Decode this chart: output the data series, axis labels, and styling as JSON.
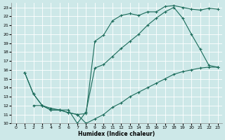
{
  "bg_color": "#cde8e8",
  "grid_color": "#b8d8d8",
  "line_color": "#1a6b5a",
  "xlabel": "Humidex (Indice chaleur)",
  "xlim": [
    -0.5,
    23.5
  ],
  "ylim": [
    10,
    23.5
  ],
  "xticks": [
    0,
    1,
    2,
    3,
    4,
    5,
    6,
    7,
    8,
    9,
    10,
    11,
    12,
    13,
    14,
    15,
    16,
    17,
    18,
    19,
    20,
    21,
    22,
    23
  ],
  "yticks": [
    10,
    11,
    12,
    13,
    14,
    15,
    16,
    17,
    18,
    19,
    20,
    21,
    22,
    23
  ],
  "line_A_x": [
    1,
    2,
    3,
    4,
    5,
    6,
    7,
    8,
    9,
    10,
    11,
    12,
    13,
    14,
    15,
    16,
    17,
    18,
    19,
    20,
    21,
    22,
    23
  ],
  "line_A_y": [
    15.7,
    13.3,
    12.0,
    11.5,
    11.5,
    11.2,
    11.0,
    10.0,
    10.5,
    11.0,
    11.8,
    12.3,
    13.0,
    13.5,
    14.0,
    14.5,
    15.0,
    15.5,
    15.8,
    16.0,
    16.2,
    16.3,
    16.3
  ],
  "line_B_x": [
    1,
    2,
    3,
    4,
    5,
    6,
    7,
    8,
    9,
    10,
    11,
    12,
    13,
    14,
    15,
    16,
    17,
    18,
    19,
    20,
    21,
    22,
    23
  ],
  "line_B_y": [
    15.7,
    13.3,
    12.0,
    11.5,
    11.5,
    11.2,
    11.0,
    11.1,
    19.2,
    19.9,
    21.5,
    22.1,
    22.3,
    22.1,
    22.5,
    22.5,
    23.1,
    23.2,
    23.0,
    22.8,
    22.7,
    22.9,
    22.8
  ],
  "line_C_x": [
    2,
    3,
    4,
    5,
    6,
    7,
    8,
    9,
    10,
    11,
    12,
    13,
    14,
    15,
    16,
    17,
    18,
    19,
    20,
    21,
    22,
    23
  ],
  "line_C_y": [
    12.0,
    12.0,
    11.7,
    11.5,
    11.5,
    10.0,
    11.3,
    16.2,
    16.6,
    17.5,
    18.4,
    19.2,
    20.0,
    21.0,
    21.8,
    22.5,
    23.0,
    21.8,
    20.0,
    18.3,
    16.5,
    16.3
  ]
}
